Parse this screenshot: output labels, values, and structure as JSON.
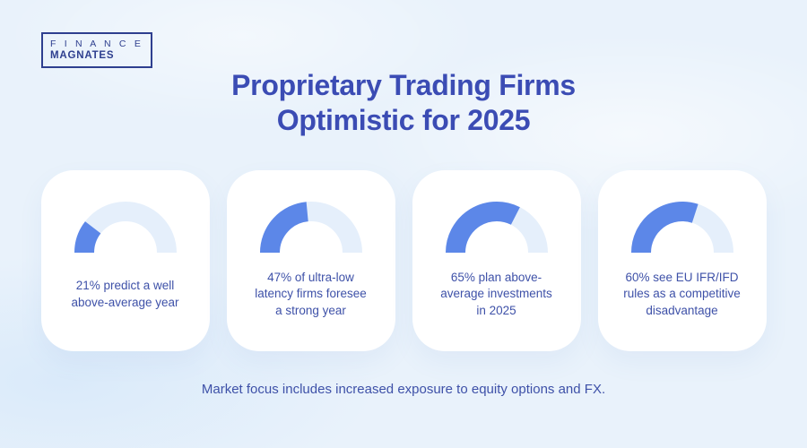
{
  "logo": {
    "line1": "F I N A N C E",
    "line2": "MAGNATES"
  },
  "title": {
    "line1": "Proprietary Trading Firms",
    "line2": "Optimistic for 2025"
  },
  "footer": "Market focus includes increased exposure to equity options and FX.",
  "colors": {
    "background": "#E9F2FB",
    "card": "#FFFFFF",
    "gauge_fill": "#5C87E8",
    "gauge_track": "#E5EFFB",
    "title_text": "#3B4CB4",
    "body_text": "#3E51A8",
    "logo_navy": "#2E3F8F"
  },
  "chart_data": {
    "type": "gauge",
    "subtype": "semicircle-donut",
    "unit": "percent",
    "range": [
      0,
      100
    ],
    "cards": [
      {
        "percent": 21,
        "label": "21% predict a well\nabove-average year"
      },
      {
        "percent": 47,
        "label": "47% of ultra-low\nlatency firms foresee\na strong year"
      },
      {
        "percent": 65,
        "label": "65% plan above-\naverage investments\nin 2025"
      },
      {
        "percent": 60,
        "label": "60% see EU IFR/IFD\nrules as a competitive\ndisadvantage"
      }
    ]
  }
}
